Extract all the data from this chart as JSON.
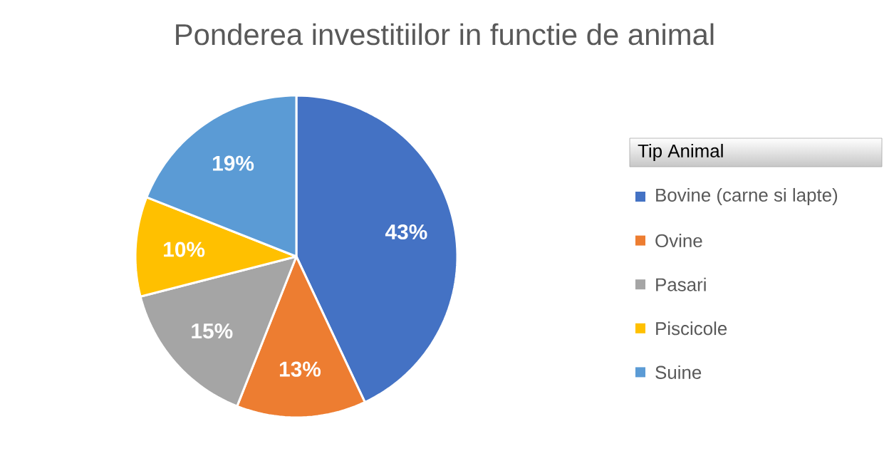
{
  "chart_data": {
    "type": "pie",
    "title": "Ponderea investitiilor in functie de animal",
    "legend_title": "Tip Animal",
    "legend": "right",
    "categories": [
      "Bovine (carne si lapte)",
      "Ovine",
      "Pasari",
      "Piscicole",
      "Suine"
    ],
    "values": [
      43,
      13,
      15,
      10,
      19
    ],
    "value_labels": [
      "43%",
      "13%",
      "15%",
      "10%",
      "19%"
    ],
    "colors": [
      "#4472c4",
      "#ed7d31",
      "#a5a5a5",
      "#ffc000",
      "#5b9bd5"
    ]
  }
}
